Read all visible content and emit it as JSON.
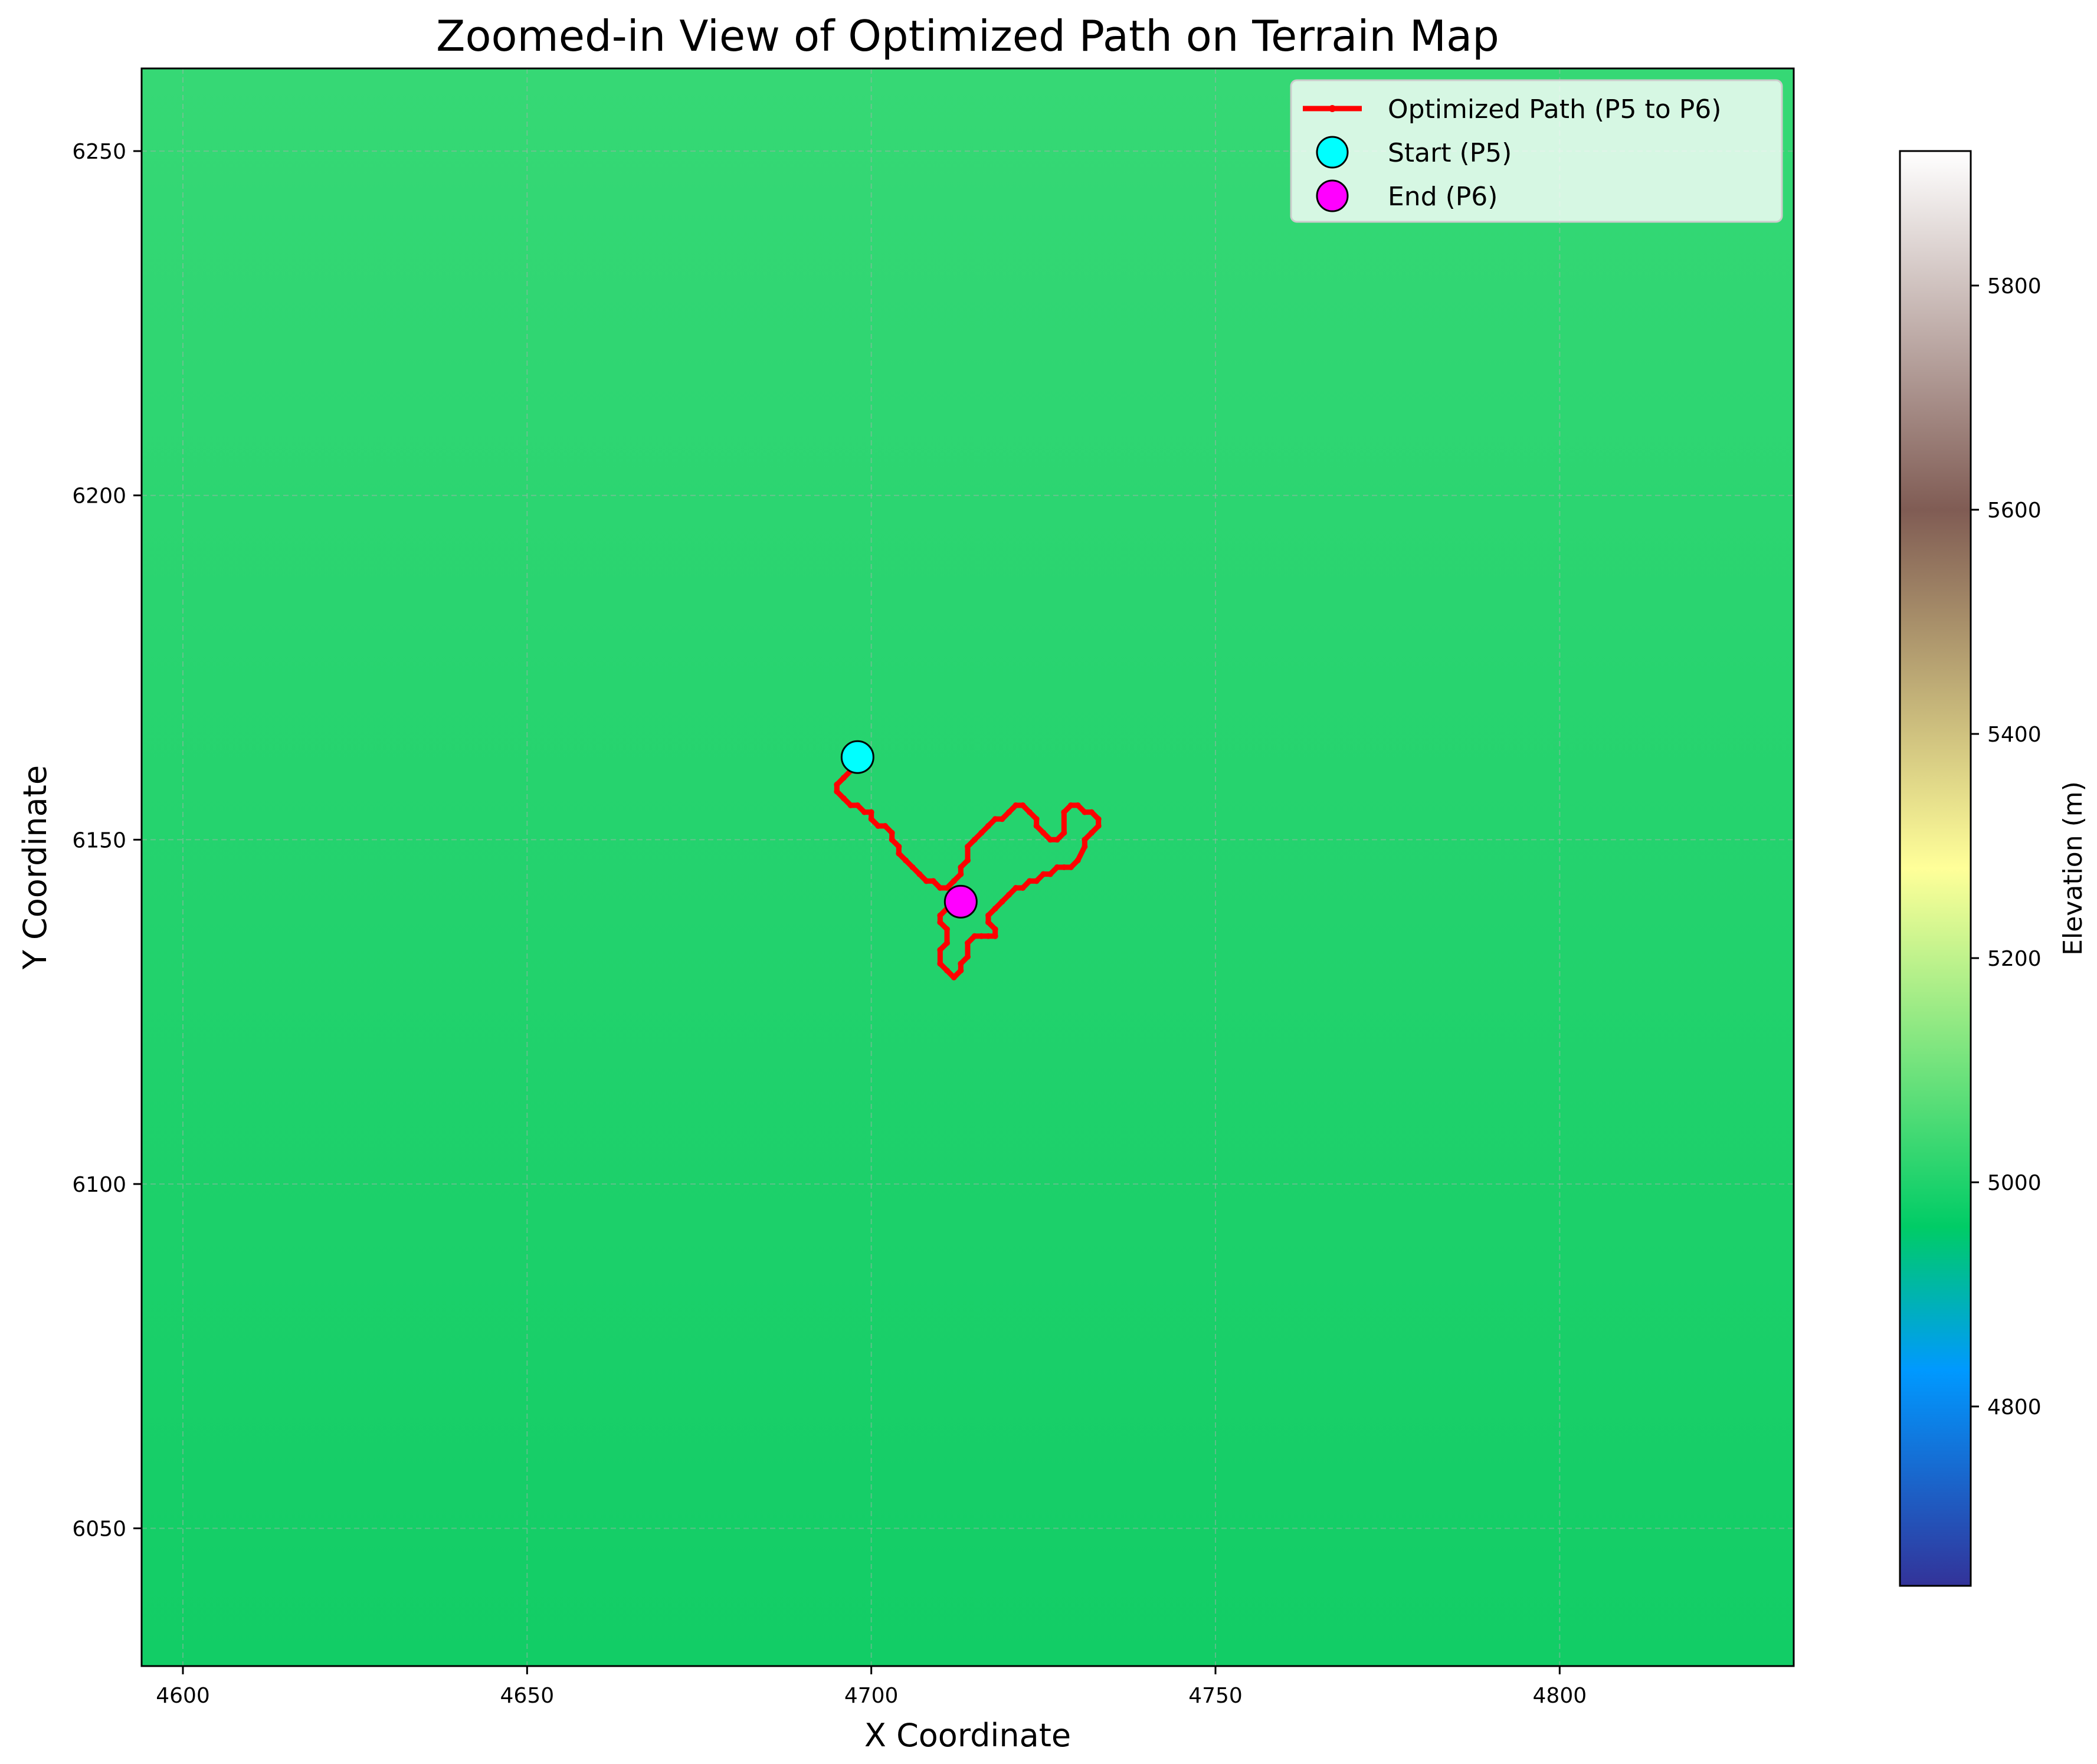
{
  "chart_data": {
    "type": "line",
    "title": "Zoomed-in View of Optimized Path on Terrain Map",
    "xlabel": "X Coordinate",
    "ylabel": "Y Coordinate",
    "xlim": [
      4594,
      4834
    ],
    "ylim": [
      6030,
      6262
    ],
    "x_ticks": [
      4600,
      4650,
      4700,
      4750,
      4800
    ],
    "y_ticks": [
      6050,
      6100,
      6150,
      6200,
      6250
    ],
    "grid": true,
    "background_colors": {
      "top": "#36d875",
      "bottom": "#12cd66"
    },
    "series": [
      {
        "name": "Optimized Path (P5 to P6)",
        "kind": "line",
        "color": "#ff0000",
        "x": [
          4698,
          4697,
          4696,
          4695,
          4695,
          4696,
          4697,
          4698,
          4699,
          4700,
          4700,
          4701,
          4702,
          4703,
          4703,
          4704,
          4704,
          4705,
          4706,
          4707,
          4708,
          4709,
          4710,
          4711,
          4712,
          4713,
          4713,
          4714,
          4714,
          4715,
          4716,
          4717,
          4718,
          4719,
          4720,
          4721,
          4722,
          4723,
          4724,
          4724,
          4725,
          4726,
          4727,
          4728,
          4728,
          4729,
          4730,
          4731,
          4732,
          4733,
          4733,
          4732,
          4731,
          4731,
          4730,
          4729,
          4728,
          4727,
          4726,
          4725,
          4724,
          4723,
          4722,
          4721,
          4720,
          4719,
          4718,
          4717,
          4717,
          4718,
          4718,
          4717,
          4716,
          4715,
          4714,
          4714,
          4713,
          4713,
          4712,
          4711,
          4710,
          4710,
          4711,
          4711,
          4710,
          4710,
          4711,
          4712,
          4713
        ],
        "y": [
          6162,
          6160,
          6159,
          6158,
          6157,
          6156,
          6155,
          6155,
          6154,
          6154,
          6153,
          6152,
          6152,
          6151,
          6150,
          6149,
          6148,
          6147,
          6146,
          6145,
          6144,
          6144,
          6143,
          6143,
          6144,
          6145,
          6146,
          6147,
          6149,
          6150,
          6151,
          6152,
          6153,
          6153,
          6154,
          6155,
          6155,
          6154,
          6153,
          6152,
          6151,
          6150,
          6150,
          6151,
          6154,
          6155,
          6155,
          6154,
          6154,
          6153,
          6152,
          6151,
          6150,
          6149,
          6147,
          6146,
          6146,
          6146,
          6145,
          6145,
          6144,
          6144,
          6143,
          6143,
          6142,
          6141,
          6140,
          6139,
          6138,
          6137,
          6136,
          6136,
          6136,
          6136,
          6135,
          6133,
          6132,
          6131,
          6130,
          6131,
          6132,
          6134,
          6135,
          6137,
          6138,
          6139,
          6140,
          6141,
          6141
        ]
      },
      {
        "name": "Start (P5)",
        "kind": "marker",
        "color": "#00ffff",
        "x": [
          4698
        ],
        "y": [
          6162
        ]
      },
      {
        "name": "End (P6)",
        "kind": "marker",
        "color": "#ff00ff",
        "x": [
          4713
        ],
        "y": [
          6141
        ]
      }
    ],
    "legend_position": "upper right",
    "colorbar": {
      "label": "Elevation (m)",
      "range": [
        4640,
        5920
      ],
      "ticks": [
        4800,
        5000,
        5200,
        5400,
        5600,
        5800
      ],
      "colormap": "terrain",
      "colormap_stops": [
        {
          "value": 0.0,
          "color": "#333399"
        },
        {
          "value": 0.15,
          "color": "#0099ff"
        },
        {
          "value": 0.25,
          "color": "#00cc66"
        },
        {
          "value": 0.5,
          "color": "#ffff99"
        },
        {
          "value": 0.75,
          "color": "#805c54"
        },
        {
          "value": 1.0,
          "color": "#ffffff"
        }
      ]
    }
  }
}
